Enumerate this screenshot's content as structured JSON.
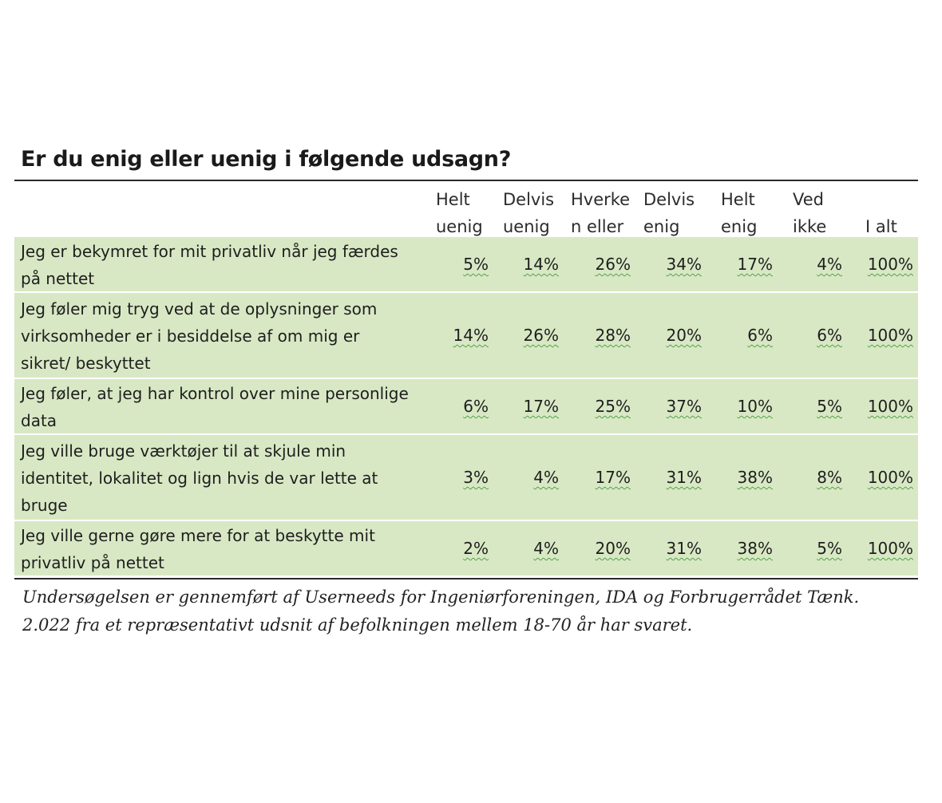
{
  "title": "Er du enig eller uenig i følgende udsagn?",
  "columns": [
    {
      "line1": "Helt",
      "line2": "uenig"
    },
    {
      "line1": "Delvis",
      "line2": "uenig"
    },
    {
      "line1": "Hverke",
      "line2": "n eller"
    },
    {
      "line1": "Delvis",
      "line2": "enig"
    },
    {
      "line1": "Helt",
      "line2": "enig"
    },
    {
      "line1": "Ved",
      "line2": "ikke"
    },
    {
      "line1": "",
      "line2": "I alt"
    }
  ],
  "rows": [
    {
      "lines": [
        "Jeg er bekymret for mit privatliv når jeg færdes",
        "på nettet"
      ],
      "values": [
        "5%",
        "14%",
        "26%",
        "34%",
        "17%",
        "4%",
        "100%"
      ]
    },
    {
      "lines": [
        "Jeg føler mig tryg ved at de oplysninger som",
        "virksomheder er i besiddelse af om mig er",
        "sikret/ beskyttet"
      ],
      "values": [
        "14%",
        "26%",
        "28%",
        "20%",
        "6%",
        "6%",
        "100%"
      ]
    },
    {
      "lines": [
        "Jeg føler, at jeg har kontrol over mine personlige",
        "data"
      ],
      "values": [
        "6%",
        "17%",
        "25%",
        "37%",
        "10%",
        "5%",
        "100%"
      ]
    },
    {
      "lines": [
        "Jeg ville bruge værktøjer til at skjule min",
        "identitet, lokalitet og lign hvis de var lette at",
        "bruge"
      ],
      "values": [
        "3%",
        "4%",
        "17%",
        "31%",
        "38%",
        "8%",
        "100%"
      ]
    },
    {
      "lines": [
        "Jeg ville gerne gøre mere for at beskytte mit",
        "privatliv på nettet"
      ],
      "values": [
        "2%",
        "4%",
        "20%",
        "31%",
        "38%",
        "5%",
        "100%"
      ]
    }
  ],
  "note": {
    "line1": "Undersøgelsen er gennemført af Userneeds for Ingeniørforeningen, IDA og Forbrugerrådet Tænk.",
    "line2": "2.022 fra et repræsentativt udsnit af befolkningen mellem 18-70 år har svaret."
  },
  "colors": {
    "row_background": "#d8e8c4",
    "rule": "#2a2a2a",
    "spell_underline": "#57a04b"
  }
}
